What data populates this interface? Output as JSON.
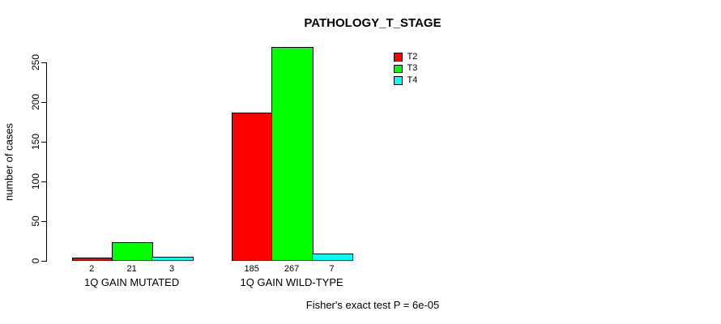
{
  "chart_data": {
    "type": "bar",
    "title": "PATHOLOGY_T_STAGE",
    "ylabel": "number of cases",
    "xlabel": "",
    "ylim": [
      0,
      250
    ],
    "yticks": [
      0,
      50,
      100,
      150,
      200,
      250
    ],
    "categories": [
      "1Q GAIN MUTATED",
      "1Q GAIN WILD-TYPE"
    ],
    "series": [
      {
        "name": "T2",
        "color": "#FF0000",
        "values": [
          2,
          185
        ]
      },
      {
        "name": "T3",
        "color": "#00FF00",
        "values": [
          21,
          267
        ]
      },
      {
        "name": "T4",
        "color": "#00FFFF",
        "values": [
          3,
          7
        ]
      }
    ],
    "bar_value_labels": [
      [
        "2",
        "21",
        "3"
      ],
      [
        "185",
        "267",
        "7"
      ]
    ],
    "legend_position": "top-right",
    "grid": false,
    "bar_border_color": "#000000",
    "footer": "Fisher's exact test P = 6e-05"
  }
}
